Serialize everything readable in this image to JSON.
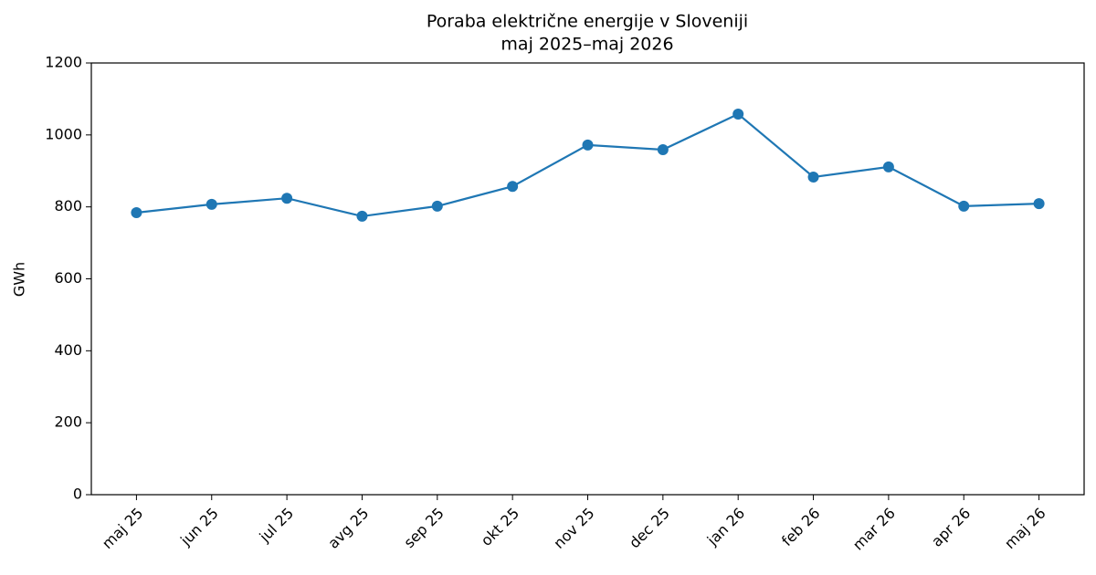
{
  "chart_data": {
    "type": "line",
    "title": "Poraba električne energije v Sloveniji",
    "subtitle": "maj 2025–maj 2026",
    "y_label": "GWh",
    "categories": [
      "maj 25",
      "jun 25",
      "jul 25",
      "avg 25",
      "sep 25",
      "okt 25",
      "nov 25",
      "dec 25",
      "jan 26",
      "feb 26",
      "mar 26",
      "apr 26",
      "maj 26"
    ],
    "series": [
      {
        "color": "#1f77b4",
        "values": [
          784,
          807,
          824,
          774,
          802,
          857,
          972,
          959,
          1058,
          883,
          911,
          802,
          809
        ]
      }
    ],
    "ylim": [
      0,
      1200
    ],
    "yticks": [
      0,
      200,
      400,
      600,
      800,
      1000,
      1200
    ],
    "grid": false
  }
}
